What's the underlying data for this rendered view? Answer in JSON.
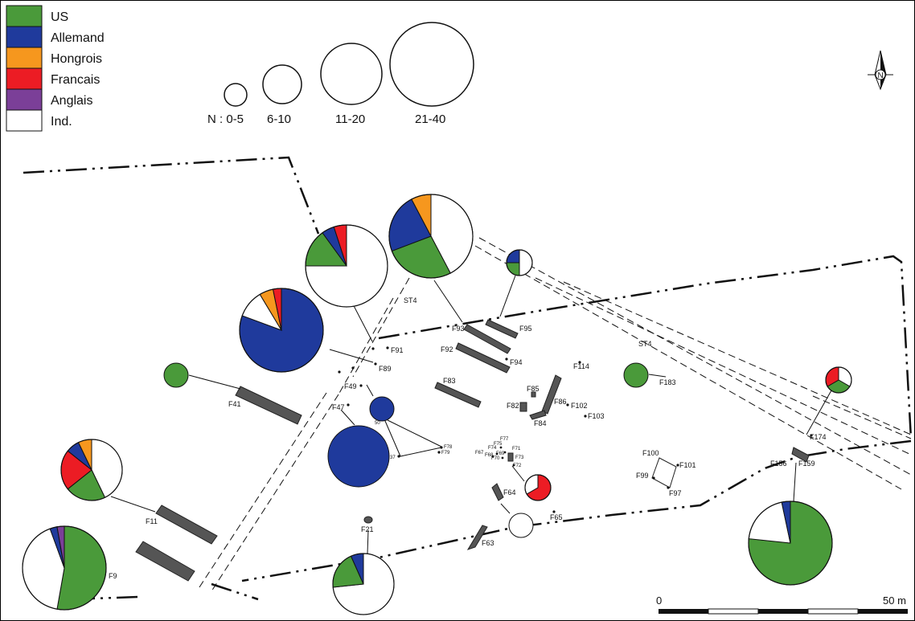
{
  "colors": {
    "US": "#4a9a3a",
    "Allemand": "#1f3a9c",
    "Hongrois": "#f6971e",
    "Francais": "#ec1c24",
    "Anglais": "#7b3f98",
    "Ind": "#ffffff",
    "feature_fill": "#555555"
  },
  "legend": {
    "categories": [
      {
        "key": "US",
        "label": "US"
      },
      {
        "key": "Allemand",
        "label": "Allemand"
      },
      {
        "key": "Hongrois",
        "label": "Hongrois"
      },
      {
        "key": "Francais",
        "label": "Francais"
      },
      {
        "key": "Anglais",
        "label": "Anglais"
      },
      {
        "key": "Ind",
        "label": "Ind."
      }
    ],
    "size_classes": [
      {
        "label": "N : 0-5"
      },
      {
        "label": "6-10"
      },
      {
        "label": "11-20"
      },
      {
        "label": "21-40"
      }
    ]
  },
  "north_arrow": {
    "label": "N"
  },
  "scale_bar": {
    "start_label": "0",
    "end_label": "50 m"
  },
  "labels": {
    "F9": "F9",
    "F11": "F11",
    "F21": "F21",
    "F41": "F41",
    "F47": "F47",
    "F49": "F49",
    "F89": "F89",
    "F91": "F91",
    "F83": "F83",
    "F92": "F92",
    "F93": "F93",
    "F94": "F94",
    "F95": "F95",
    "F85": "F85",
    "F82": "F82",
    "F84": "F84",
    "F86": "F86",
    "F102": "F102",
    "F103": "F103",
    "F114": "F114",
    "F183": "F183",
    "F174": "F174",
    "F156": "F156",
    "F159": "F159",
    "F100": "F100",
    "F101": "F101",
    "F99": "F99",
    "F97": "F97",
    "F64": "F64",
    "F65": "F65",
    "F63": "F63",
    "F78": "F78",
    "F79": "F79",
    "F77": "F77",
    "F75": "F75",
    "F74": "F74",
    "F71": "F71",
    "F67": "F67",
    "F68": "F68",
    "F69": "F69",
    "F70": "F70",
    "F73": "F73",
    "F72": "F72",
    "F37": "37",
    "F50": "50",
    "ST4_a": "ST4",
    "ST4_b": "ST4"
  },
  "pie_charts": [
    {
      "id": "pie-top-center",
      "slices": [
        {
          "cat": "Ind",
          "value": 11
        },
        {
          "cat": "US",
          "value": 7
        },
        {
          "cat": "Allemand",
          "value": 6
        },
        {
          "cat": "Hongrois",
          "value": 2
        }
      ]
    },
    {
      "id": "pie-upper-left",
      "slices": [
        {
          "cat": "Ind",
          "value": 15
        },
        {
          "cat": "US",
          "value": 3
        },
        {
          "cat": "Allemand",
          "value": 1
        },
        {
          "cat": "Francais",
          "value": 1
        }
      ]
    },
    {
      "id": "pie-left-blue",
      "slices": [
        {
          "cat": "Allemand",
          "value": 15
        },
        {
          "cat": "Ind",
          "value": 2
        },
        {
          "cat": "Hongrois",
          "value": 1
        },
        {
          "cat": "Francais",
          "value": 0.6
        }
      ]
    },
    {
      "id": "pie-small-top",
      "slices": [
        {
          "cat": "Ind",
          "value": 2
        },
        {
          "cat": "US",
          "value": 1
        },
        {
          "cat": "Allemand",
          "value": 1
        }
      ]
    },
    {
      "id": "pie-mid-left",
      "slices": [
        {
          "cat": "Ind",
          "value": 6
        },
        {
          "cat": "US",
          "value": 3
        },
        {
          "cat": "Francais",
          "value": 3
        },
        {
          "cat": "Allemand",
          "value": 1
        },
        {
          "cat": "Hongrois",
          "value": 1
        }
      ]
    },
    {
      "id": "pie-bottom-left",
      "slices": [
        {
          "cat": "US",
          "value": 19
        },
        {
          "cat": "Ind",
          "value": 15
        },
        {
          "cat": "Allemand",
          "value": 1
        },
        {
          "cat": "Anglais",
          "value": 1
        }
      ]
    },
    {
      "id": "pie-bottom-center",
      "slices": [
        {
          "cat": "Ind",
          "value": 11
        },
        {
          "cat": "US",
          "value": 3
        },
        {
          "cat": "Allemand",
          "value": 1
        }
      ]
    },
    {
      "id": "pie-bottom-right",
      "slices": [
        {
          "cat": "US",
          "value": 23
        },
        {
          "cat": "Ind",
          "value": 6
        },
        {
          "cat": "Allemand",
          "value": 1
        }
      ]
    },
    {
      "id": "pie-small-right",
      "slices": [
        {
          "cat": "Ind",
          "value": 1
        },
        {
          "cat": "US",
          "value": 1
        },
        {
          "cat": "Francais",
          "value": 1
        }
      ]
    },
    {
      "id": "pie-red-center",
      "slices": [
        {
          "cat": "Francais",
          "value": 2
        },
        {
          "cat": "Ind",
          "value": 1
        }
      ]
    },
    {
      "id": "pie-single-blue-large",
      "slices": [
        {
          "cat": "Allemand",
          "value": 1
        }
      ]
    },
    {
      "id": "pie-single-blue-small",
      "slices": [
        {
          "cat": "Allemand",
          "value": 1
        }
      ]
    },
    {
      "id": "pie-single-green-left",
      "slices": [
        {
          "cat": "US",
          "value": 1
        }
      ]
    },
    {
      "id": "pie-single-green-right",
      "slices": [
        {
          "cat": "US",
          "value": 1
        }
      ]
    },
    {
      "id": "pie-white-center",
      "slices": [
        {
          "cat": "Ind",
          "value": 1
        }
      ]
    }
  ]
}
